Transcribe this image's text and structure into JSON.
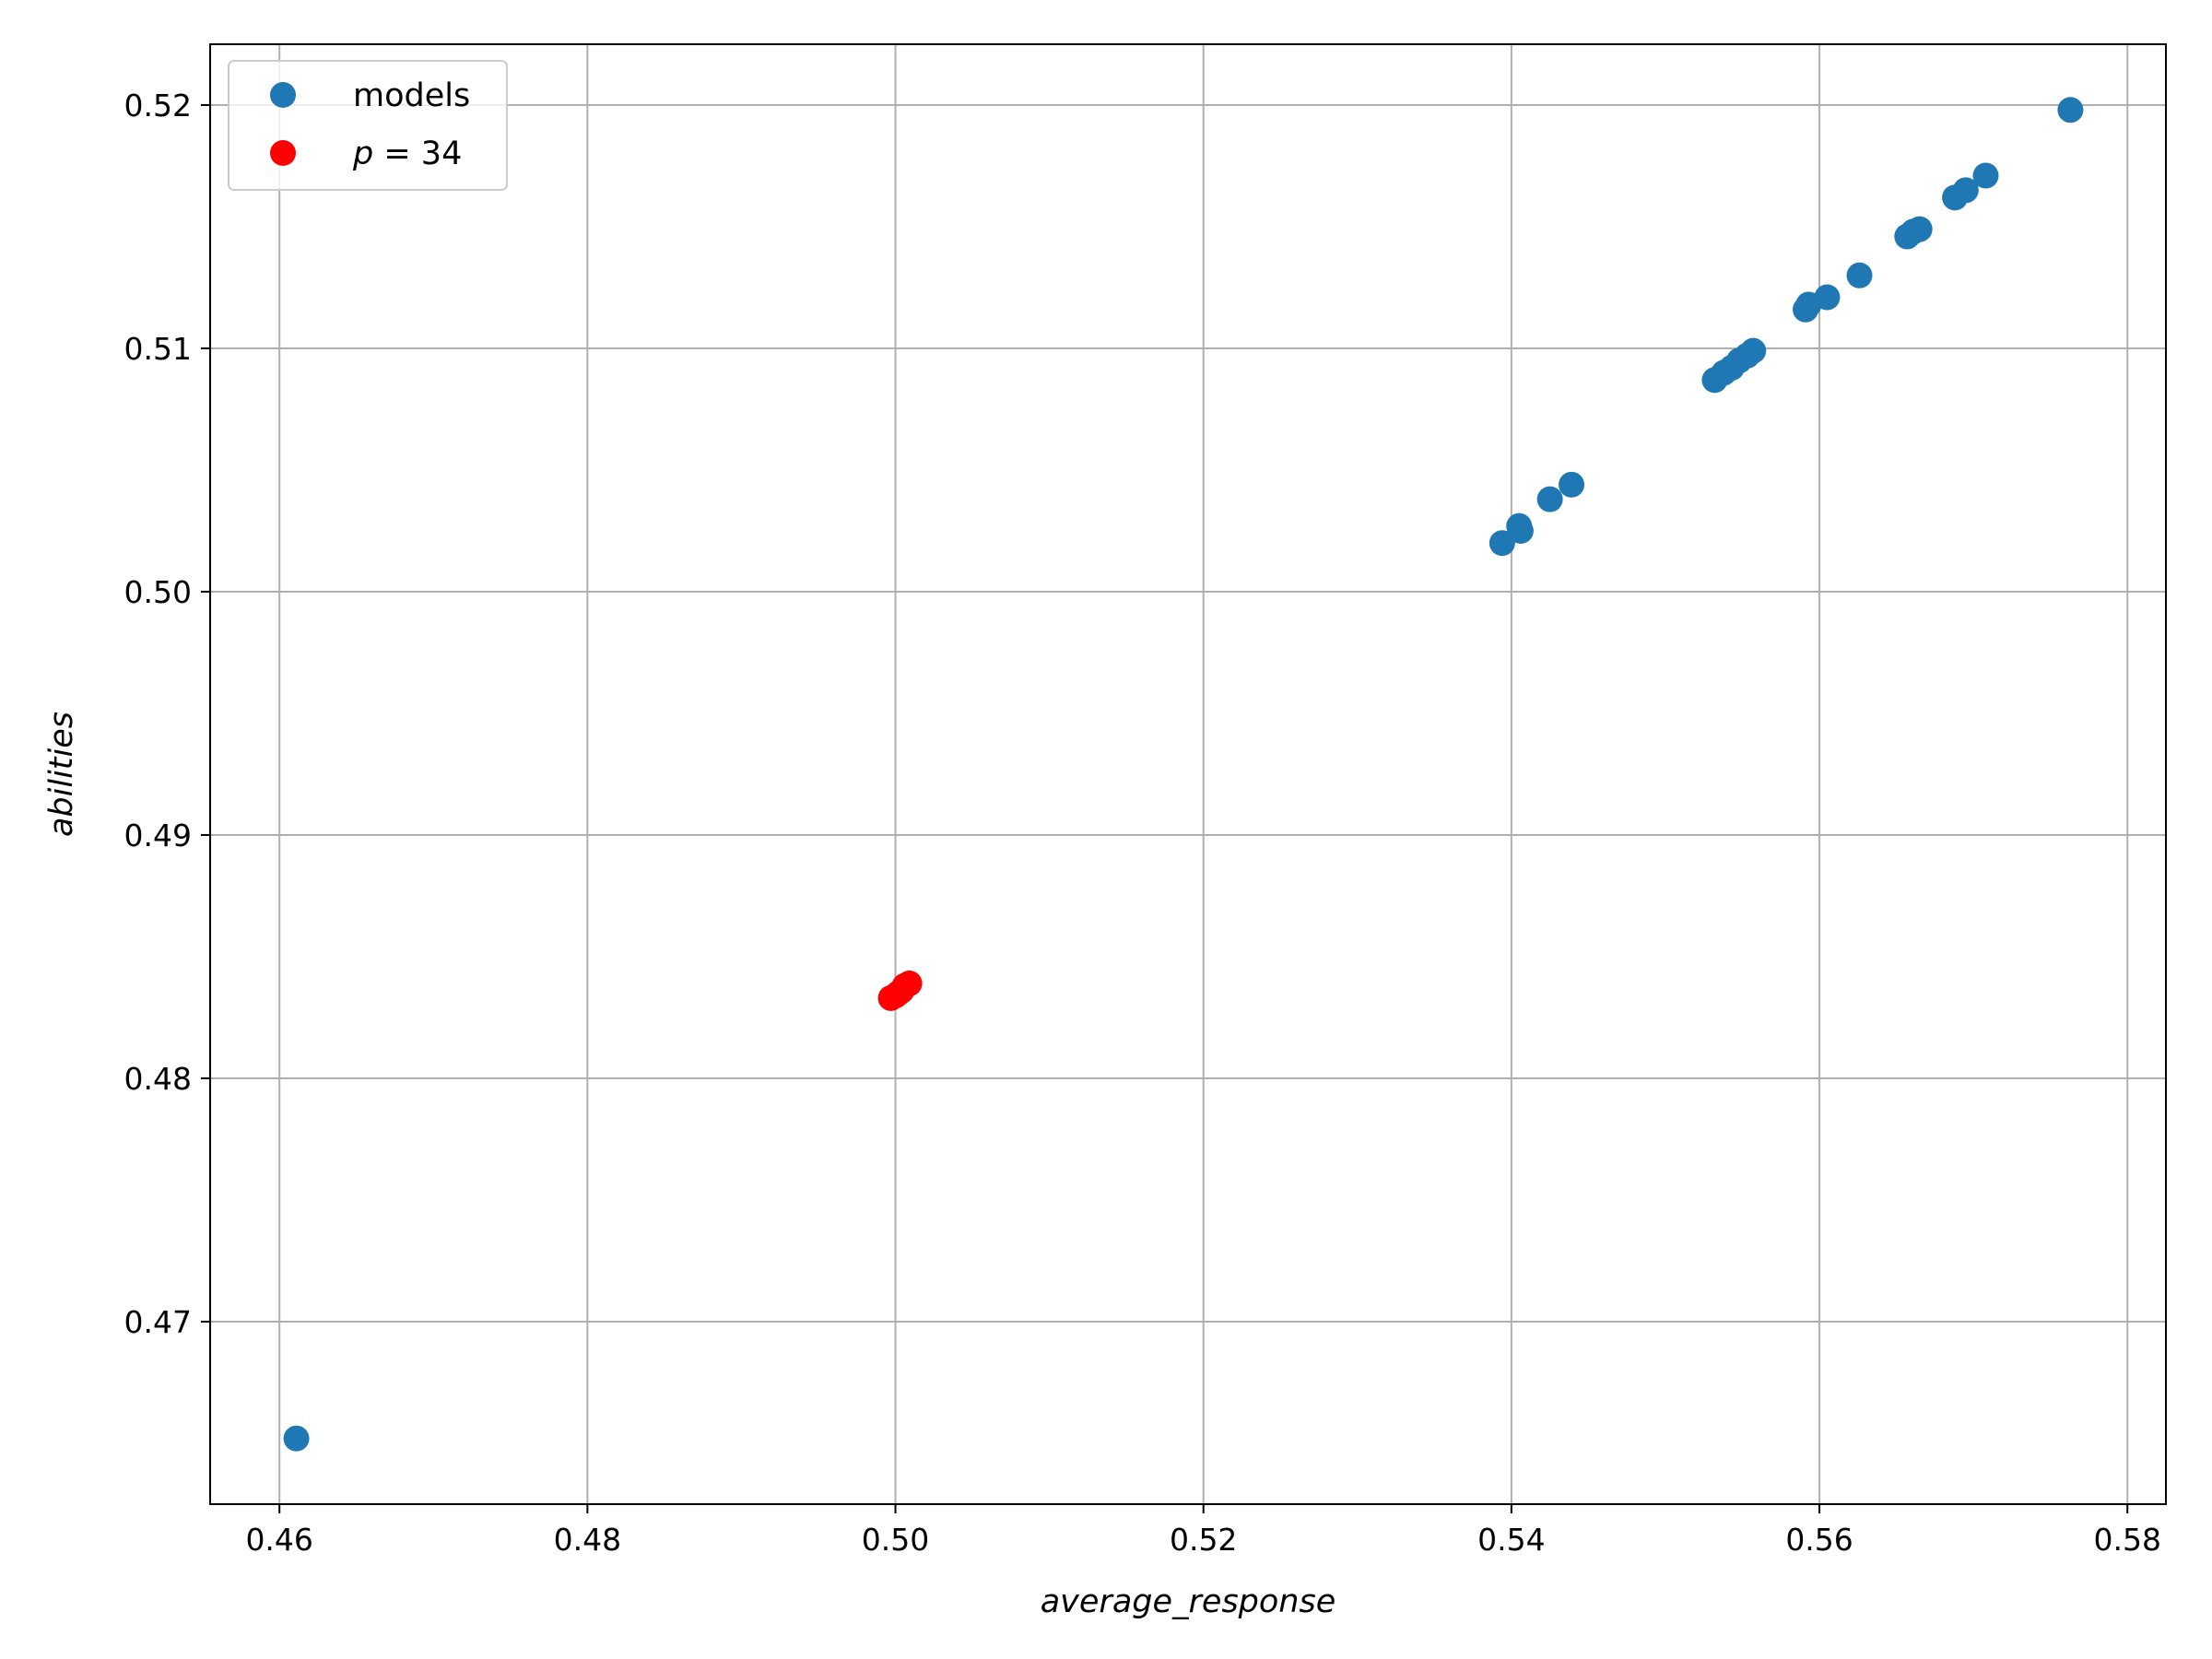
{
  "chart_data": {
    "type": "scatter",
    "title": "",
    "xlabel": "average_response",
    "ylabel": "abilities",
    "xlim": [
      0.4555,
      0.5825
    ],
    "ylim": [
      0.4625,
      0.5225
    ],
    "xticks": [
      0.46,
      0.48,
      0.5,
      0.52,
      0.54,
      0.56,
      0.58
    ],
    "xtick_labels": [
      "0.46",
      "0.48",
      "0.50",
      "0.52",
      "0.54",
      "0.56",
      "0.58"
    ],
    "yticks": [
      0.47,
      0.48,
      0.49,
      0.5,
      0.51,
      0.52
    ],
    "ytick_labels": [
      "0.47",
      "0.48",
      "0.49",
      "0.50",
      "0.51",
      "0.52"
    ],
    "grid": true,
    "legend_position": "top-left",
    "series": [
      {
        "name": "models",
        "color": "#1f77b4",
        "points": [
          {
            "x": 0.4611,
            "y": 0.4652
          },
          {
            "x": 0.5394,
            "y": 0.502
          },
          {
            "x": 0.5405,
            "y": 0.5027
          },
          {
            "x": 0.5406,
            "y": 0.5025
          },
          {
            "x": 0.5425,
            "y": 0.5038
          },
          {
            "x": 0.5439,
            "y": 0.5044
          },
          {
            "x": 0.5532,
            "y": 0.5087
          },
          {
            "x": 0.5538,
            "y": 0.509
          },
          {
            "x": 0.5543,
            "y": 0.5092
          },
          {
            "x": 0.5548,
            "y": 0.5095
          },
          {
            "x": 0.5553,
            "y": 0.5097
          },
          {
            "x": 0.5557,
            "y": 0.5099
          },
          {
            "x": 0.5591,
            "y": 0.5116
          },
          {
            "x": 0.5593,
            "y": 0.5118
          },
          {
            "x": 0.5605,
            "y": 0.5121
          },
          {
            "x": 0.5626,
            "y": 0.513
          },
          {
            "x": 0.5657,
            "y": 0.5146
          },
          {
            "x": 0.5661,
            "y": 0.5148
          },
          {
            "x": 0.5665,
            "y": 0.5149
          },
          {
            "x": 0.5688,
            "y": 0.5162
          },
          {
            "x": 0.5695,
            "y": 0.5165
          },
          {
            "x": 0.5708,
            "y": 0.5171
          },
          {
            "x": 0.5763,
            "y": 0.5198
          }
        ]
      },
      {
        "name": "p = 34",
        "legend_math": {
          "var": "p",
          "eq": " = 34"
        },
        "color": "#ff0000",
        "points": [
          {
            "x": 0.4997,
            "y": 0.4833
          },
          {
            "x": 0.5,
            "y": 0.4834
          },
          {
            "x": 0.5002,
            "y": 0.4835
          },
          {
            "x": 0.5004,
            "y": 0.4836
          },
          {
            "x": 0.5006,
            "y": 0.4838
          },
          {
            "x": 0.5009,
            "y": 0.4839
          }
        ]
      }
    ]
  }
}
